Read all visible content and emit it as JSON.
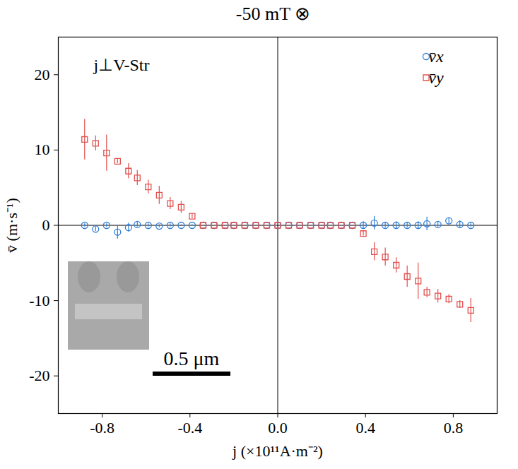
{
  "chart_data": {
    "type": "scatter",
    "title": "-50 mT ⊗",
    "x_label": "j (×10¹¹A·m⁻²)",
    "y_label": "v̄ (m·s⁻¹)",
    "annotations": [
      "j⊥V-Str"
    ],
    "scale_bar": "0.5 μm",
    "x": [
      -0.88,
      -0.83,
      -0.78,
      -0.73,
      -0.68,
      -0.64,
      -0.59,
      -0.54,
      -0.49,
      -0.44,
      -0.39,
      -0.34,
      -0.29,
      -0.24,
      -0.2,
      -0.15,
      -0.1,
      -0.05,
      0,
      0.05,
      0.1,
      0.15,
      0.2,
      0.24,
      0.29,
      0.34,
      0.39,
      0.44,
      0.49,
      0.54,
      0.59,
      0.64,
      0.68,
      0.73,
      0.78,
      0.83,
      0.88
    ],
    "series": [
      {
        "name": "v̄x",
        "color": "#2f7ed8",
        "marker": "circle",
        "values": [
          0,
          -0.5,
          0,
          -0.9,
          -0.3,
          0.1,
          0,
          -0.1,
          0,
          0,
          0,
          0,
          0,
          0,
          0,
          0,
          0,
          0,
          0,
          0,
          0,
          0,
          0,
          0,
          0,
          0,
          0,
          0.3,
          0,
          0,
          0,
          0,
          0.2,
          0.1,
          0.6,
          0.1,
          0
        ],
        "errors": [
          0.2,
          0.3,
          0.2,
          0.9,
          0.6,
          0.3,
          0.2,
          0.2,
          0.2,
          0.1,
          0.1,
          0,
          0,
          0,
          0,
          0,
          0,
          0,
          0,
          0,
          0,
          0,
          0,
          0,
          0,
          0,
          0.5,
          0.9,
          0.3,
          0.5,
          0.3,
          0.5,
          0.9,
          0.3,
          0.4,
          0.5,
          0.2
        ]
      },
      {
        "name": "v̄y",
        "color": "#e2504e",
        "marker": "square",
        "values": [
          11.4,
          10.9,
          9.6,
          8.5,
          7.2,
          6.3,
          5.1,
          4.0,
          2.9,
          2.4,
          1.2,
          0,
          0,
          0,
          0,
          0,
          0,
          0,
          0,
          0,
          0,
          0,
          0,
          0,
          0,
          0,
          -1.1,
          -3.5,
          -4.2,
          -5.3,
          -6.8,
          -7.4,
          -8.9,
          -9.4,
          -9.8,
          -10.5,
          -11.3
        ],
        "errors": [
          2.7,
          1.0,
          2.4,
          0.3,
          1.0,
          1.0,
          0.9,
          1.2,
          0.8,
          0.8,
          0.3,
          0,
          0,
          0,
          0,
          0,
          0,
          0,
          0,
          0,
          0,
          0,
          0,
          0,
          0,
          0,
          0.3,
          1.2,
          1.2,
          1.0,
          1.4,
          2.4,
          0.7,
          0.9,
          0.6,
          0.5,
          1.6
        ]
      }
    ],
    "xlim": [
      -1,
      1
    ],
    "ylim": [
      -25,
      25
    ],
    "xticks": [
      -0.8,
      -0.4,
      {
        "value": 0,
        "label": "0.0"
      },
      0.4,
      0.8
    ],
    "yticks": [
      -20,
      -10,
      0,
      10,
      20
    ],
    "legend": "top-right",
    "grid": false
  }
}
